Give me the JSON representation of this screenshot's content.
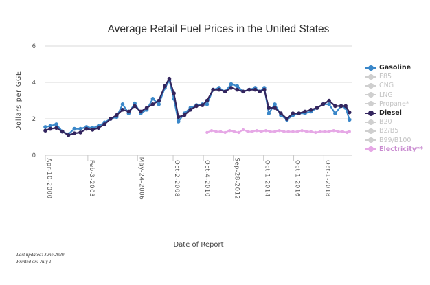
{
  "chart_data": {
    "type": "line",
    "title": "Average Retail Fuel Prices in the United States",
    "xlabel": "Date of Report",
    "ylabel": "Dollars per GGE",
    "ylim": [
      0,
      6
    ],
    "yticks": [
      "0",
      "2",
      "4",
      "6"
    ],
    "xticks": [
      {
        "label": "Apr-10-2000",
        "x": 2000.27
      },
      {
        "label": "Feb-3-2003",
        "x": 2003.09
      },
      {
        "label": "May-24-2006",
        "x": 2006.39
      },
      {
        "label": "Oct-2-2008",
        "x": 2008.75
      },
      {
        "label": "Oct-4-2010",
        "x": 2010.76
      },
      {
        "label": "Sep-28-2012",
        "x": 2012.74
      },
      {
        "label": "Oct-1-2014",
        "x": 2014.75
      },
      {
        "label": "Oct-1-2016",
        "x": 2016.75
      },
      {
        "label": "Oct-1-2018",
        "x": 2018.75
      }
    ],
    "xlim": [
      2000.27,
      2020.6
    ],
    "grid": true,
    "legend_position": "right",
    "series": [
      {
        "name": "Gasoline",
        "color": "#3a87c9",
        "visible": true,
        "x": [
          2000.27,
          2000.6,
          2001.0,
          2001.4,
          2001.8,
          2002.2,
          2002.6,
          2003.0,
          2003.4,
          2003.8,
          2004.2,
          2004.6,
          2005.0,
          2005.4,
          2005.8,
          2006.2,
          2006.6,
          2007.0,
          2007.4,
          2007.8,
          2008.2,
          2008.5,
          2008.8,
          2009.1,
          2009.5,
          2009.9,
          2010.3,
          2010.7,
          2011.0,
          2011.4,
          2011.8,
          2012.2,
          2012.6,
          2013.0,
          2013.4,
          2013.8,
          2014.2,
          2014.5,
          2014.8,
          2015.1,
          2015.5,
          2015.9,
          2016.3,
          2016.7,
          2017.1,
          2017.5,
          2017.9,
          2018.3,
          2018.7,
          2019.1,
          2019.5,
          2019.9,
          2020.2,
          2020.45
        ],
        "y": [
          1.55,
          1.6,
          1.7,
          1.3,
          1.15,
          1.45,
          1.45,
          1.55,
          1.5,
          1.6,
          1.8,
          2.0,
          2.1,
          2.8,
          2.3,
          2.85,
          2.3,
          2.5,
          3.1,
          2.8,
          3.7,
          4.1,
          3.1,
          1.85,
          2.3,
          2.6,
          2.75,
          2.8,
          2.8,
          3.6,
          3.7,
          3.5,
          3.9,
          3.8,
          3.5,
          3.6,
          3.7,
          3.5,
          3.7,
          2.3,
          2.8,
          2.2,
          1.95,
          2.2,
          2.3,
          2.3,
          2.4,
          2.6,
          2.8,
          2.8,
          2.3,
          2.7,
          2.6,
          1.95
        ]
      },
      {
        "name": "E85",
        "visible": false
      },
      {
        "name": "CNG",
        "visible": false
      },
      {
        "name": "LNG",
        "visible": false
      },
      {
        "name": "Propane*",
        "visible": false
      },
      {
        "name": "Diesel",
        "color": "#33255e",
        "visible": true,
        "x": [
          2000.27,
          2000.6,
          2001.0,
          2001.4,
          2001.8,
          2002.2,
          2002.6,
          2003.0,
          2003.4,
          2003.8,
          2004.2,
          2004.6,
          2005.0,
          2005.4,
          2005.8,
          2006.2,
          2006.6,
          2007.0,
          2007.4,
          2007.8,
          2008.2,
          2008.5,
          2008.8,
          2009.1,
          2009.5,
          2009.9,
          2010.3,
          2010.7,
          2011.0,
          2011.4,
          2011.8,
          2012.2,
          2012.6,
          2013.0,
          2013.4,
          2013.8,
          2014.2,
          2014.5,
          2014.8,
          2015.1,
          2015.5,
          2015.9,
          2016.3,
          2016.7,
          2017.1,
          2017.5,
          2017.9,
          2018.3,
          2018.7,
          2019.1,
          2019.5,
          2019.9,
          2020.2,
          2020.45
        ],
        "y": [
          1.35,
          1.45,
          1.5,
          1.3,
          1.1,
          1.2,
          1.25,
          1.45,
          1.4,
          1.5,
          1.7,
          2.0,
          2.2,
          2.5,
          2.4,
          2.7,
          2.4,
          2.6,
          2.8,
          3.0,
          3.8,
          4.2,
          3.4,
          2.1,
          2.2,
          2.5,
          2.7,
          2.75,
          3.0,
          3.6,
          3.6,
          3.5,
          3.7,
          3.6,
          3.5,
          3.6,
          3.6,
          3.5,
          3.6,
          2.6,
          2.6,
          2.3,
          2.0,
          2.3,
          2.3,
          2.4,
          2.5,
          2.6,
          2.8,
          3.0,
          2.7,
          2.7,
          2.7,
          2.35
        ]
      },
      {
        "name": "B20",
        "visible": false
      },
      {
        "name": "B2/B5",
        "visible": false
      },
      {
        "name": "B99/B100",
        "visible": false
      },
      {
        "name": "Electricity**",
        "color": "#e6a8e6",
        "visible": true,
        "x": [
          2011.0,
          2011.3,
          2011.6,
          2011.9,
          2012.2,
          2012.5,
          2012.8,
          2013.1,
          2013.4,
          2013.7,
          2014.0,
          2014.3,
          2014.6,
          2014.9,
          2015.2,
          2015.5,
          2015.8,
          2016.1,
          2016.4,
          2016.7,
          2017.0,
          2017.3,
          2017.6,
          2017.9,
          2018.2,
          2018.5,
          2018.8,
          2019.1,
          2019.4,
          2019.7,
          2020.0,
          2020.3,
          2020.45
        ],
        "y": [
          1.25,
          1.35,
          1.3,
          1.3,
          1.25,
          1.35,
          1.3,
          1.25,
          1.4,
          1.3,
          1.3,
          1.35,
          1.3,
          1.35,
          1.3,
          1.3,
          1.35,
          1.3,
          1.3,
          1.3,
          1.3,
          1.35,
          1.3,
          1.3,
          1.25,
          1.3,
          1.3,
          1.3,
          1.35,
          1.3,
          1.3,
          1.25,
          1.3
        ]
      }
    ]
  },
  "footer": {
    "updated": "Last updated: June 2020",
    "printed": "Printed on: July 1"
  }
}
